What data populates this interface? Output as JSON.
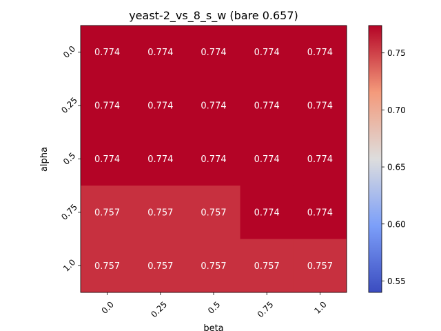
{
  "chart_data": {
    "type": "heatmap",
    "title": "yeast-2_vs_8_s_w (bare 0.657)",
    "xlabel": "beta",
    "ylabel": "alpha",
    "x_categories": [
      "0.0",
      "0.25",
      "0.5",
      "0.75",
      "1.0"
    ],
    "y_categories": [
      "0.0",
      "0.25",
      "0.5",
      "0.75",
      "1.0"
    ],
    "values": [
      [
        0.774,
        0.774,
        0.774,
        0.774,
        0.774
      ],
      [
        0.774,
        0.774,
        0.774,
        0.774,
        0.774
      ],
      [
        0.774,
        0.774,
        0.774,
        0.774,
        0.774
      ],
      [
        0.757,
        0.757,
        0.757,
        0.774,
        0.774
      ],
      [
        0.757,
        0.757,
        0.757,
        0.757,
        0.757
      ]
    ],
    "cell_labels": [
      [
        "0.774",
        "0.774",
        "0.774",
        "0.774",
        "0.774"
      ],
      [
        "0.774",
        "0.774",
        "0.774",
        "0.774",
        "0.774"
      ],
      [
        "0.774",
        "0.774",
        "0.774",
        "0.774",
        "0.774"
      ],
      [
        "0.757",
        "0.757",
        "0.757",
        "0.774",
        "0.774"
      ],
      [
        "0.757",
        "0.757",
        "0.757",
        "0.757",
        "0.757"
      ]
    ],
    "colormap": "coolwarm",
    "colorbar": {
      "vmin": 0.54,
      "vmax": 0.774,
      "ticks": [
        0.55,
        0.6,
        0.65,
        0.7,
        0.75
      ],
      "tick_labels": [
        "0.55",
        "0.60",
        "0.65",
        "0.70",
        "0.75"
      ]
    },
    "grid": false
  }
}
